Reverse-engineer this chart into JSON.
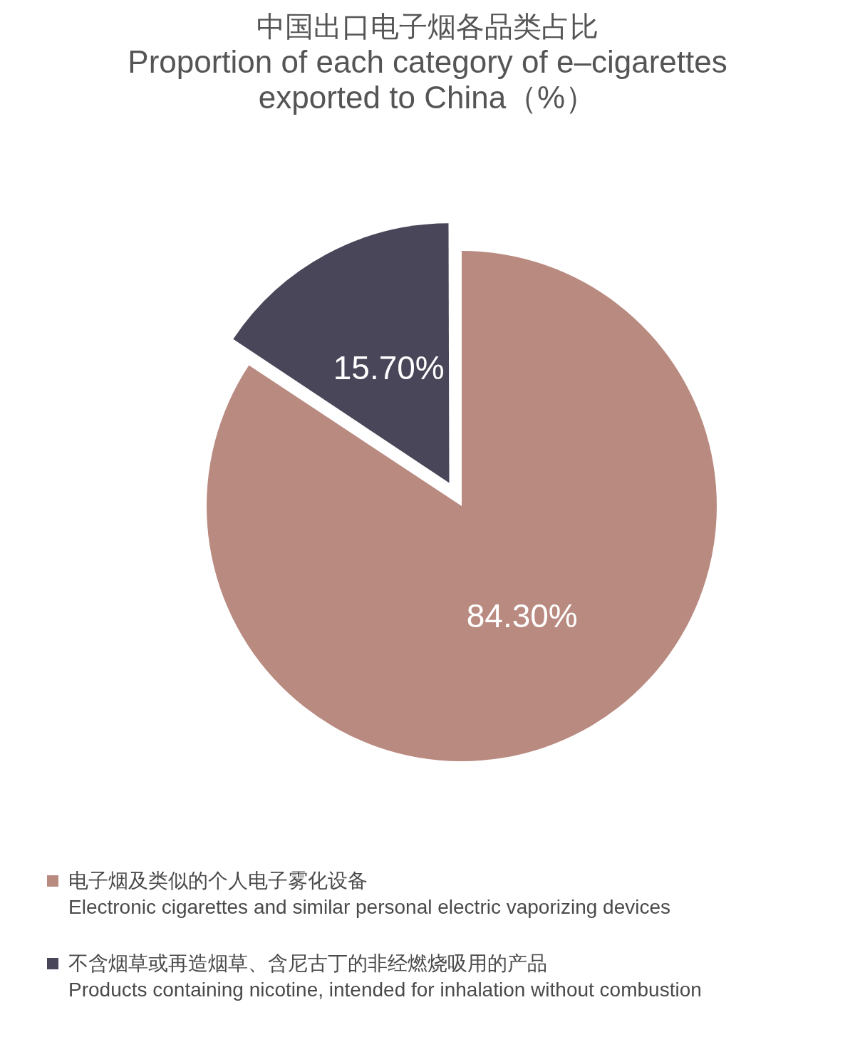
{
  "chart_data": {
    "type": "pie",
    "title": "中国出口电子烟各品类占比",
    "subtitle": "Proportion of each category of e–cigarettes exported to China（%）",
    "categories": [
      "电子烟及类似的个人电子雾化设备\nElectronic cigarettes and similar personal electric vaporizing devices",
      "不含烟草或再造烟草、含尼古丁的非经燃烧吸用的产品\nProducts containing nicotine, intended for inhalation without combustion"
    ],
    "values": [
      84.3,
      15.7
    ],
    "colors": [
      "#b98a80",
      "#4a4659"
    ],
    "value_labels": [
      "84.30%",
      "15.70%"
    ],
    "legend": "bottom"
  }
}
